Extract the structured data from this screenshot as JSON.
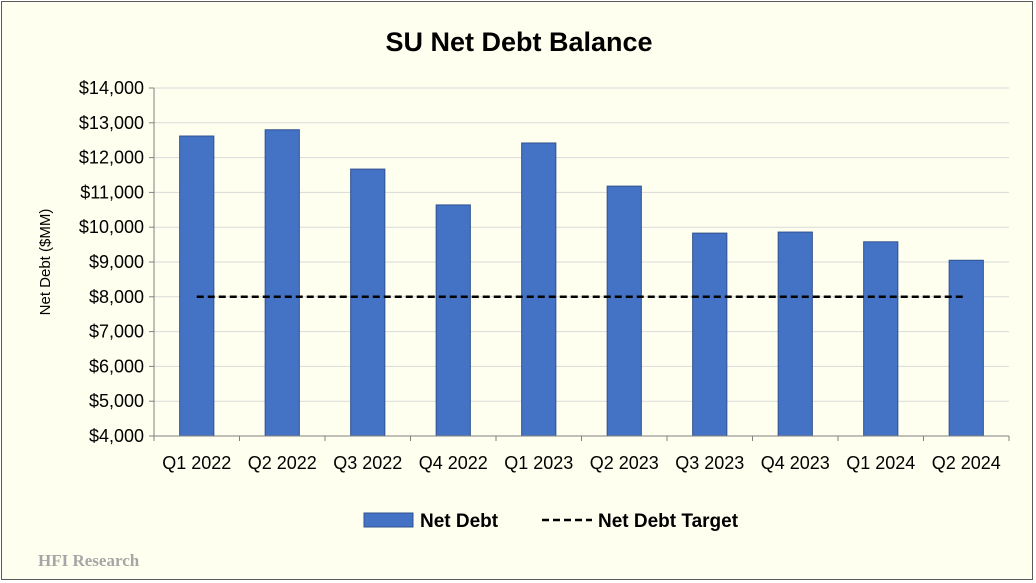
{
  "chart_data": {
    "type": "bar",
    "title": "SU Net Debt Balance",
    "ylabel": "Net Debt ($MM)",
    "xlabel": "",
    "categories": [
      "Q1 2022",
      "Q2 2022",
      "Q3 2022",
      "Q4 2022",
      "Q1 2023",
      "Q2 2023",
      "Q3 2023",
      "Q4 2023",
      "Q1 2024",
      "Q2 2024"
    ],
    "series": [
      {
        "name": "Net Debt",
        "type": "bar",
        "color": "#4472c4",
        "values": [
          12620,
          12800,
          11670,
          10640,
          12420,
          11180,
          9830,
          9860,
          9580,
          9050
        ]
      },
      {
        "name": "Net Debt Target",
        "type": "line",
        "style": "dashed",
        "color": "#000000",
        "values": [
          8000,
          8000,
          8000,
          8000,
          8000,
          8000,
          8000,
          8000,
          8000,
          8000
        ]
      }
    ],
    "ylim": [
      4000,
      14000
    ],
    "yticks": [
      "$4,000",
      "$5,000",
      "$6,000",
      "$7,000",
      "$8,000",
      "$9,000",
      "$10,000",
      "$11,000",
      "$12,000",
      "$13,000",
      "$14,000"
    ],
    "grid": true,
    "legend": "bottom-center",
    "colors": {
      "background": "#fffff0",
      "bar": "#4472c4",
      "bar_border": "#2f528f",
      "grid": "#d9d9d9"
    }
  },
  "watermark": "HFI Research"
}
